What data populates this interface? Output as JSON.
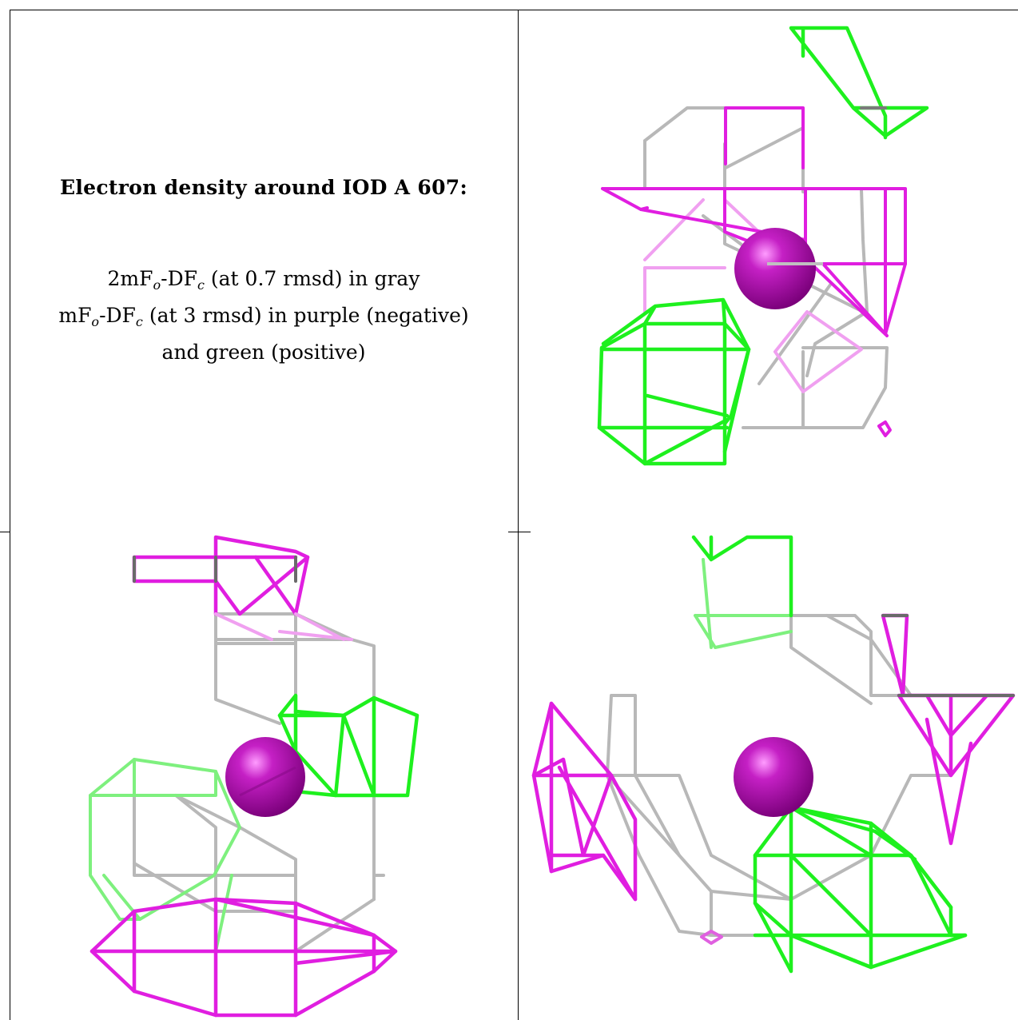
{
  "caption": {
    "title": "Electron density around IOD A 607:",
    "line1": {
      "pre": "2mF",
      "sub1": "o",
      "mid": "-DF",
      "sub2": "c",
      "post": " (at 0.7 rmsd) in gray"
    },
    "line2": {
      "pre": "mF",
      "sub1": "o",
      "mid": "-DF",
      "sub2": "c",
      "post": " (at 3 rmsd) in purple (negative)"
    },
    "line3": "and green (positive)"
  },
  "colors": {
    "gray_mesh": "#b4b4b4",
    "purple_mesh": "#e020e0",
    "green_mesh": "#1ef01e",
    "iodine_atom": "#b010b0",
    "border": "#000000"
  },
  "panels": [
    {
      "name": "view-top-right",
      "atom": "iodine-sphere"
    },
    {
      "name": "view-bottom-left",
      "atom": "iodine-sphere"
    },
    {
      "name": "view-bottom-right",
      "atom": "iodine-sphere"
    }
  ]
}
